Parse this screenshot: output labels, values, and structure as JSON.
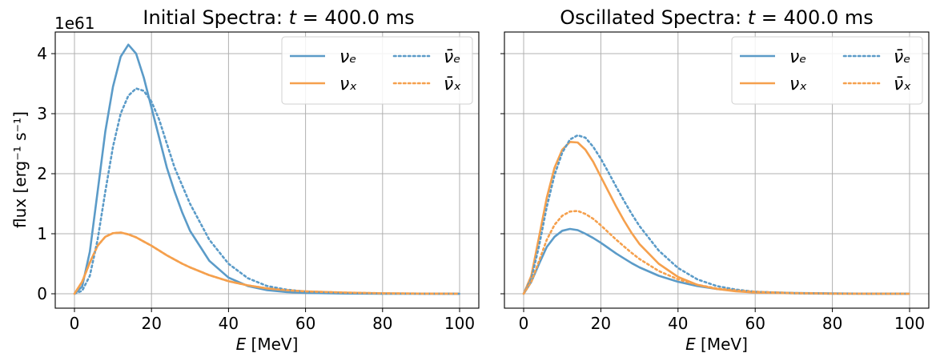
{
  "colors": {
    "blue": "#5b9bc8",
    "orange": "#f5a04d"
  },
  "y_multiplier": "1e61",
  "y_label": "flux [erg⁻¹ s⁻¹]",
  "chart_data": [
    {
      "type": "line",
      "title": "Initial Spectra: t = 400.0 ms",
      "xlabel": "E [MeV]",
      "ylabel": "flux [erg⁻¹ s⁻¹]",
      "xlim": [
        0,
        100
      ],
      "ylim": [
        0,
        4.2
      ],
      "xticks": [
        "0",
        "20",
        "40",
        "60",
        "80",
        "100"
      ],
      "yticks": [
        "0",
        "1",
        "2",
        "3",
        "4"
      ],
      "grid": true,
      "legend_position": "top-right",
      "x": [
        0,
        2,
        4,
        6,
        8,
        10,
        12,
        14,
        16,
        18,
        20,
        22,
        24,
        26,
        28,
        30,
        35,
        40,
        45,
        50,
        55,
        60,
        70,
        80,
        90,
        100
      ],
      "series": [
        {
          "name": "νₑ",
          "style": "solid",
          "color": "blue",
          "values": [
            0,
            0.12,
            0.7,
            1.7,
            2.7,
            3.45,
            3.95,
            4.15,
            4.0,
            3.6,
            3.1,
            2.6,
            2.1,
            1.7,
            1.35,
            1.05,
            0.55,
            0.27,
            0.13,
            0.06,
            0.03,
            0.015,
            0.004,
            0.001,
            0.0003,
            0.0001
          ]
        },
        {
          "name": "νₓ",
          "style": "solid",
          "color": "orange",
          "values": [
            0,
            0.2,
            0.52,
            0.8,
            0.95,
            1.01,
            1.02,
            0.99,
            0.94,
            0.87,
            0.8,
            0.72,
            0.64,
            0.57,
            0.5,
            0.44,
            0.31,
            0.21,
            0.14,
            0.09,
            0.06,
            0.04,
            0.02,
            0.008,
            0.003,
            0.001
          ]
        },
        {
          "name": "ν̄ₑ",
          "style": "dotted",
          "color": "blue",
          "values": [
            0,
            0.05,
            0.3,
            0.9,
            1.7,
            2.45,
            3.0,
            3.3,
            3.42,
            3.38,
            3.2,
            2.9,
            2.5,
            2.1,
            1.8,
            1.5,
            0.9,
            0.5,
            0.26,
            0.13,
            0.07,
            0.035,
            0.01,
            0.003,
            0.001,
            0.0003
          ]
        },
        {
          "name": "ν̄ₓ",
          "style": "dotted",
          "color": "orange",
          "values": [
            0,
            0.2,
            0.52,
            0.8,
            0.95,
            1.01,
            1.02,
            0.99,
            0.94,
            0.87,
            0.8,
            0.72,
            0.64,
            0.57,
            0.5,
            0.44,
            0.31,
            0.21,
            0.14,
            0.09,
            0.06,
            0.04,
            0.02,
            0.008,
            0.003,
            0.001
          ]
        }
      ]
    },
    {
      "type": "line",
      "title": "Oscillated Spectra: t = 400.0 ms",
      "xlabel": "E [MeV]",
      "ylabel": "",
      "xlim": [
        0,
        100
      ],
      "ylim": [
        0,
        4.2
      ],
      "xticks": [
        "0",
        "20",
        "40",
        "60",
        "80",
        "100"
      ],
      "yticks": [
        "0",
        "1",
        "2",
        "3",
        "4"
      ],
      "grid": true,
      "legend_position": "top-right",
      "x": [
        0,
        2,
        4,
        6,
        8,
        10,
        12,
        14,
        16,
        18,
        20,
        22,
        24,
        26,
        28,
        30,
        35,
        40,
        45,
        50,
        55,
        60,
        70,
        80,
        90,
        100
      ],
      "series": [
        {
          "name": "νₑ",
          "style": "solid",
          "color": "blue",
          "values": [
            0,
            0.2,
            0.5,
            0.78,
            0.95,
            1.05,
            1.08,
            1.06,
            1.0,
            0.93,
            0.85,
            0.76,
            0.67,
            0.59,
            0.51,
            0.44,
            0.3,
            0.2,
            0.13,
            0.08,
            0.05,
            0.03,
            0.013,
            0.005,
            0.002,
            0.001
          ]
        },
        {
          "name": "νₓ",
          "style": "solid",
          "color": "orange",
          "values": [
            0,
            0.3,
            0.95,
            1.6,
            2.1,
            2.4,
            2.53,
            2.52,
            2.4,
            2.2,
            1.95,
            1.7,
            1.45,
            1.22,
            1.01,
            0.83,
            0.5,
            0.28,
            0.15,
            0.08,
            0.04,
            0.02,
            0.007,
            0.002,
            0.0007,
            0.0002
          ]
        },
        {
          "name": "ν̄ₑ",
          "style": "dotted",
          "color": "blue",
          "values": [
            0,
            0.25,
            0.8,
            1.45,
            1.98,
            2.35,
            2.57,
            2.64,
            2.6,
            2.45,
            2.25,
            2.02,
            1.78,
            1.55,
            1.33,
            1.13,
            0.72,
            0.43,
            0.24,
            0.13,
            0.07,
            0.035,
            0.01,
            0.003,
            0.001,
            0.0003
          ]
        },
        {
          "name": "ν̄ₓ",
          "style": "dotted",
          "color": "orange",
          "values": [
            0,
            0.2,
            0.55,
            0.9,
            1.15,
            1.3,
            1.37,
            1.38,
            1.33,
            1.25,
            1.14,
            1.02,
            0.9,
            0.79,
            0.68,
            0.58,
            0.38,
            0.24,
            0.15,
            0.09,
            0.055,
            0.033,
            0.012,
            0.004,
            0.0015,
            0.0005
          ]
        }
      ]
    }
  ]
}
